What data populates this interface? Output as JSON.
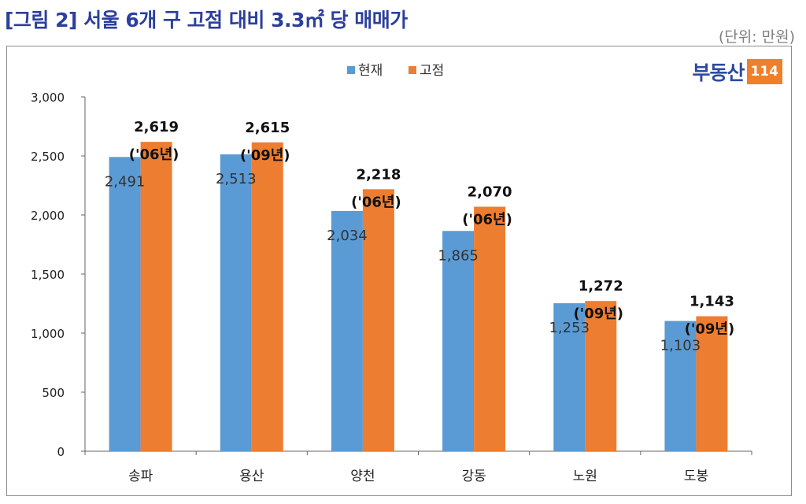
{
  "header": {
    "title": "[그림 2] 서울 6개 구 고점 대비 3.3㎡ 당 매매가",
    "unit": "(단위: 만원)"
  },
  "logo": {
    "text": "부동산",
    "box": "114"
  },
  "colors": {
    "current": "#5b9bd5",
    "peak": "#ed7d31",
    "title": "#2c3f9e"
  },
  "chart_data": {
    "type": "bar",
    "categories": [
      "송파",
      "용산",
      "양천",
      "강동",
      "노원",
      "도봉"
    ],
    "series": [
      {
        "name": "현재",
        "values": [
          2491,
          2513,
          2034,
          1865,
          1253,
          1103
        ]
      },
      {
        "name": "고점",
        "values": [
          2619,
          2615,
          2218,
          2070,
          1272,
          1143
        ]
      }
    ],
    "current_labels": [
      "2,491",
      "2,513",
      "2,034",
      "1,865",
      "1,253",
      "1,103"
    ],
    "peak_labels": [
      "2,619",
      "2,615",
      "2,218",
      "2,070",
      "1,272",
      "1,143"
    ],
    "peak_years": [
      "('06년)",
      "('09년)",
      "('06년)",
      "('06년)",
      "('09년)",
      "('09년)"
    ],
    "yticks": [
      "0",
      "500",
      "1,000",
      "1,500",
      "2,000",
      "2,500",
      "3,000"
    ],
    "ylim": [
      0,
      3000
    ],
    "legend_position": "top-center",
    "grid": false
  }
}
